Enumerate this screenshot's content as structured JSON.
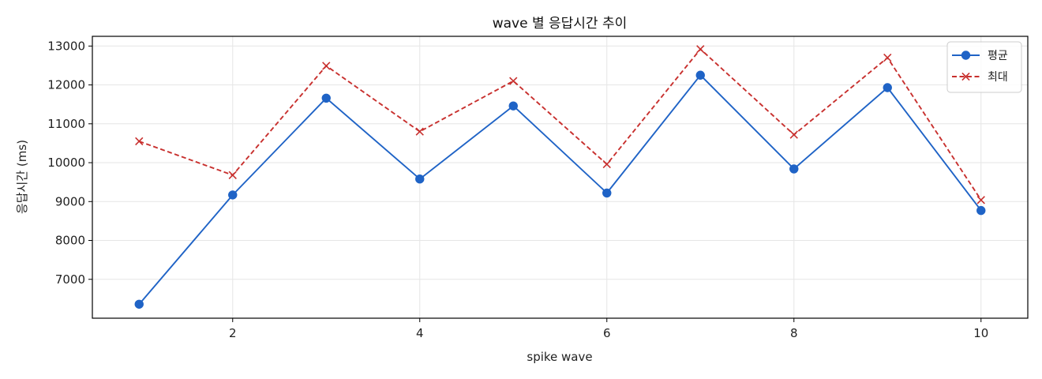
{
  "chart_data": {
    "type": "line",
    "title": "wave 별 응답시간 추이",
    "xlabel": "spike wave",
    "ylabel": "응답시간 (ms)",
    "x": [
      1,
      2,
      3,
      4,
      5,
      6,
      7,
      8,
      9,
      10
    ],
    "xlim": [
      0.5,
      10.5
    ],
    "ylim": [
      6000,
      13250
    ],
    "x_ticks": [
      2,
      4,
      6,
      8,
      10
    ],
    "y_ticks": [
      7000,
      8000,
      9000,
      10000,
      11000,
      12000,
      13000
    ],
    "grid": true,
    "legend_position": "top-right",
    "series": [
      {
        "name": "평균",
        "color": "#1f63c6",
        "line_style": "solid",
        "marker": "circle",
        "values": [
          6360,
          9170,
          11660,
          9580,
          11460,
          9220,
          12250,
          9840,
          11930,
          8770
        ]
      },
      {
        "name": "최대",
        "color": "#c8302e",
        "line_style": "dashed",
        "marker": "x",
        "values": [
          10550,
          9680,
          12490,
          10800,
          12100,
          9960,
          12920,
          10720,
          12700,
          9040
        ]
      }
    ]
  }
}
